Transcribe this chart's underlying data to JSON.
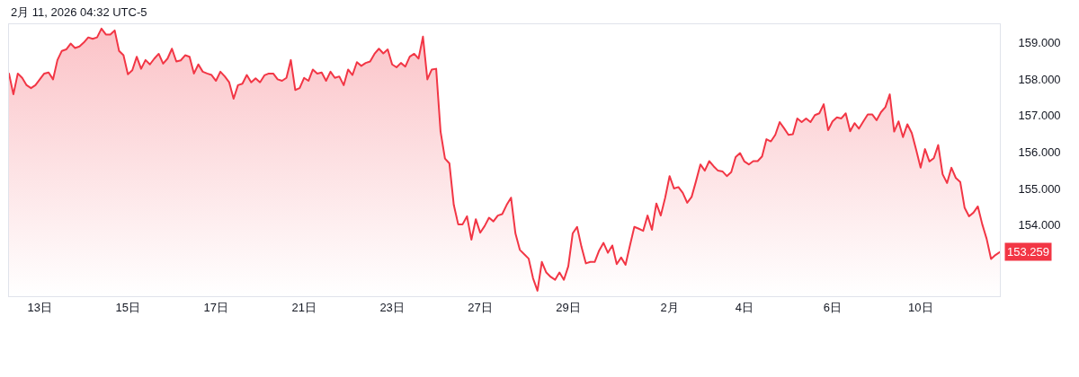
{
  "chart_data": {
    "type": "area",
    "annotations": [
      "2月 11, 2026 04:32 UTC-5",
      "153.259"
    ],
    "categories": [
      null,
      null,
      null,
      null,
      null,
      null,
      null,
      "13日",
      null,
      null,
      null,
      null,
      null,
      null,
      null,
      null,
      null,
      null,
      null,
      null,
      null,
      null,
      null,
      null,
      null,
      null,
      null,
      "15日",
      null,
      null,
      null,
      null,
      null,
      null,
      null,
      null,
      null,
      null,
      null,
      null,
      null,
      null,
      null,
      null,
      null,
      null,
      null,
      "17日",
      null,
      null,
      null,
      null,
      null,
      null,
      null,
      null,
      null,
      null,
      null,
      null,
      null,
      null,
      null,
      null,
      null,
      null,
      null,
      "21日",
      null,
      null,
      null,
      null,
      null,
      null,
      null,
      null,
      null,
      null,
      null,
      null,
      null,
      null,
      null,
      null,
      null,
      null,
      null,
      "23日",
      null,
      null,
      null,
      null,
      null,
      null,
      null,
      null,
      null,
      null,
      null,
      null,
      null,
      null,
      null,
      null,
      null,
      null,
      null,
      "27日",
      null,
      null,
      null,
      null,
      null,
      null,
      null,
      null,
      null,
      null,
      null,
      null,
      null,
      null,
      null,
      null,
      null,
      null,
      null,
      "29日",
      null,
      null,
      null,
      null,
      null,
      null,
      null,
      null,
      null,
      null,
      null,
      null,
      null,
      null,
      null,
      null,
      null,
      null,
      null,
      null,
      null,
      null,
      "2月",
      null,
      null,
      null,
      null,
      null,
      null,
      null,
      null,
      null,
      null,
      null,
      null,
      null,
      null,
      null,
      null,
      "4日",
      null,
      null,
      null,
      null,
      null,
      null,
      null,
      null,
      null,
      null,
      null,
      null,
      null,
      null,
      null,
      null,
      null,
      null,
      null,
      "6日",
      null,
      null,
      null,
      null,
      null,
      null,
      null,
      null,
      null,
      null,
      null,
      null,
      null,
      null,
      null,
      null,
      null,
      null,
      null,
      "10日",
      null,
      null,
      null,
      null,
      null,
      null,
      null,
      null,
      null,
      null,
      null,
      null,
      null,
      null,
      null,
      null,
      null,
      null
    ],
    "series": [
      {
        "color": "#f23645",
        "values": [
          158.15,
          157.58,
          158.15,
          158.03,
          157.83,
          157.75,
          157.83,
          157.99,
          158.15,
          158.18,
          157.99,
          158.52,
          158.77,
          158.81,
          158.97,
          158.85,
          158.89,
          159.0,
          159.14,
          159.1,
          159.14,
          159.38,
          159.22,
          159.22,
          159.33,
          158.77,
          158.65,
          158.13,
          158.24,
          158.61,
          158.28,
          158.52,
          158.4,
          158.56,
          158.69,
          158.42,
          158.56,
          158.83,
          158.48,
          158.51,
          158.65,
          158.61,
          158.15,
          158.4,
          158.2,
          158.15,
          158.11,
          157.95,
          158.2,
          158.07,
          157.91,
          157.46,
          157.83,
          157.87,
          158.11,
          157.91,
          158.02,
          157.91,
          158.1,
          158.15,
          158.15,
          157.99,
          157.95,
          158.03,
          158.52,
          157.7,
          157.75,
          158.03,
          157.95,
          158.26,
          158.15,
          158.18,
          157.95,
          158.2,
          158.03,
          158.07,
          157.83,
          158.26,
          158.11,
          158.46,
          158.36,
          158.44,
          158.48,
          158.69,
          158.83,
          158.7,
          158.81,
          158.4,
          158.32,
          158.44,
          158.34,
          158.61,
          158.69,
          158.56,
          159.16,
          157.99,
          158.26,
          158.28,
          156.56,
          155.82,
          155.69,
          154.55,
          154.02,
          154.02,
          154.24,
          153.6,
          154.16,
          153.79,
          153.97,
          154.2,
          154.1,
          154.26,
          154.3,
          154.55,
          154.75,
          153.77,
          153.32,
          153.2,
          153.08,
          152.54,
          152.2,
          152.99,
          152.7,
          152.58,
          152.5,
          152.7,
          152.5,
          152.87,
          153.77,
          153.95,
          153.4,
          152.95,
          152.99,
          152.99,
          153.3,
          153.51,
          153.24,
          153.44,
          152.93,
          153.11,
          152.91,
          153.44,
          153.95,
          153.9,
          153.84,
          154.26,
          153.87,
          154.59,
          154.26,
          154.75,
          155.34,
          155.0,
          155.04,
          154.88,
          154.61,
          154.77,
          155.2,
          155.66,
          155.49,
          155.75,
          155.61,
          155.49,
          155.47,
          155.34,
          155.45,
          155.86,
          155.97,
          155.74,
          155.66,
          155.75,
          155.75,
          155.88,
          156.35,
          156.29,
          156.47,
          156.82,
          156.65,
          156.47,
          156.49,
          156.92,
          156.82,
          156.92,
          156.82,
          157.01,
          157.06,
          157.31,
          156.6,
          156.84,
          156.95,
          156.92,
          157.06,
          156.57,
          156.79,
          156.64,
          156.84,
          157.03,
          157.03,
          156.87,
          157.09,
          157.23,
          157.58,
          156.56,
          156.84,
          156.41,
          156.76,
          156.52,
          156.06,
          155.57,
          156.08,
          155.74,
          155.83,
          156.19,
          155.39,
          155.15,
          155.57,
          155.29,
          155.18,
          154.47,
          154.24,
          154.34,
          154.51,
          154.02,
          153.62,
          153.07,
          153.18,
          153.259
        ]
      }
    ],
    "ylim": [
      152.05,
      159.5
    ],
    "yticks": [
      {
        "value": 154,
        "label": "154.000"
      },
      {
        "value": 155,
        "label": "155.000"
      },
      {
        "value": 156,
        "label": "156.000"
      },
      {
        "value": 157,
        "label": "157.000"
      },
      {
        "value": 158,
        "label": "158.000"
      },
      {
        "value": 159,
        "label": "159.000"
      }
    ]
  }
}
